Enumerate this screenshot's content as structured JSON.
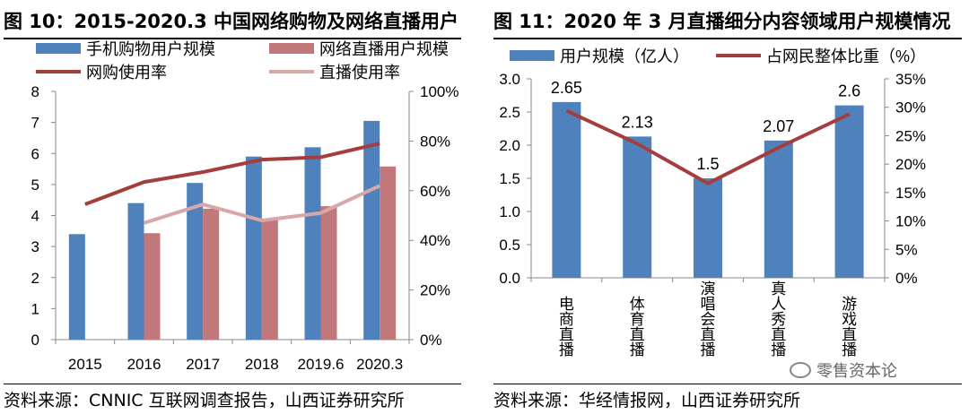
{
  "charts": [
    {
      "title": "图 10：2015-2020.3 中国网络购物及网络直播用户",
      "source": "资料来源：CNNIC 互联网调查报告，山西证券研究所"
    },
    {
      "title": "图 11：2020 年 3 月直播细分内容领域用户规模情况",
      "source": "资料来源：华经情报网，山西证券研究所"
    }
  ],
  "watermark": {
    "text": "零售资本论",
    "icon": "wechat-icon"
  },
  "colors": {
    "blue": "#4F81BD",
    "pink": "#C0787A",
    "darkred": "#A33E3C",
    "lightpink": "#D8A7A8"
  },
  "chart_data": [
    {
      "type": "bar",
      "title": "图 10：2015-2020.3 中国网络购物及网络直播用户",
      "categories": [
        "2015",
        "2016",
        "2017",
        "2018",
        "2019.6",
        "2020.3"
      ],
      "bar_series": [
        {
          "name": "手机购物用户规模",
          "values": [
            3.4,
            4.4,
            5.05,
            5.9,
            6.2,
            7.05
          ]
        },
        {
          "name": "网络直播用户规模",
          "values": [
            null,
            3.43,
            4.22,
            3.9,
            4.3,
            5.58
          ]
        }
      ],
      "line_series": [
        {
          "name": "网购使用率",
          "values": [
            54.5,
            63.5,
            67.5,
            72.5,
            73.5,
            79
          ]
        },
        {
          "name": "直播使用率",
          "values": [
            null,
            47,
            54.5,
            48,
            51,
            62
          ]
        }
      ],
      "y_left": {
        "min": 0,
        "max": 8,
        "ticks": [
          "0",
          "1",
          "2",
          "3",
          "4",
          "5",
          "6",
          "7",
          "8"
        ]
      },
      "y_right": {
        "min": 0,
        "max": 100,
        "ticks": [
          "0%",
          "20%",
          "40%",
          "60%",
          "80%",
          "100%"
        ]
      },
      "legend_placement": "top",
      "grid": false
    },
    {
      "type": "bar",
      "title": "图 11：2020 年 3 月直播细分内容领域用户规模情况",
      "categories": [
        "电商直播",
        "体育直播",
        "演唱会直播",
        "真人秀直播",
        "游戏直播"
      ],
      "bar_series": [
        {
          "name": "用户规模（亿人）",
          "values": [
            2.65,
            2.13,
            1.5,
            2.07,
            2.6
          ],
          "labels": [
            "2.65",
            "2.13",
            "1.5",
            "2.07",
            "2.6"
          ]
        }
      ],
      "line_series": [
        {
          "name": "占网民整体比重（%）",
          "values": [
            29.4,
            23.6,
            16.6,
            22.9,
            28.8
          ]
        }
      ],
      "y_left": {
        "min": 0,
        "max": 3.0,
        "ticks": [
          "0.0",
          "0.5",
          "1.0",
          "1.5",
          "2.0",
          "2.5",
          "3.0"
        ]
      },
      "y_right": {
        "min": 0,
        "max": 35,
        "ticks": [
          "0%",
          "5%",
          "10%",
          "15%",
          "20%",
          "25%",
          "30%",
          "35%"
        ]
      },
      "legend_placement": "top",
      "grid": false
    }
  ]
}
